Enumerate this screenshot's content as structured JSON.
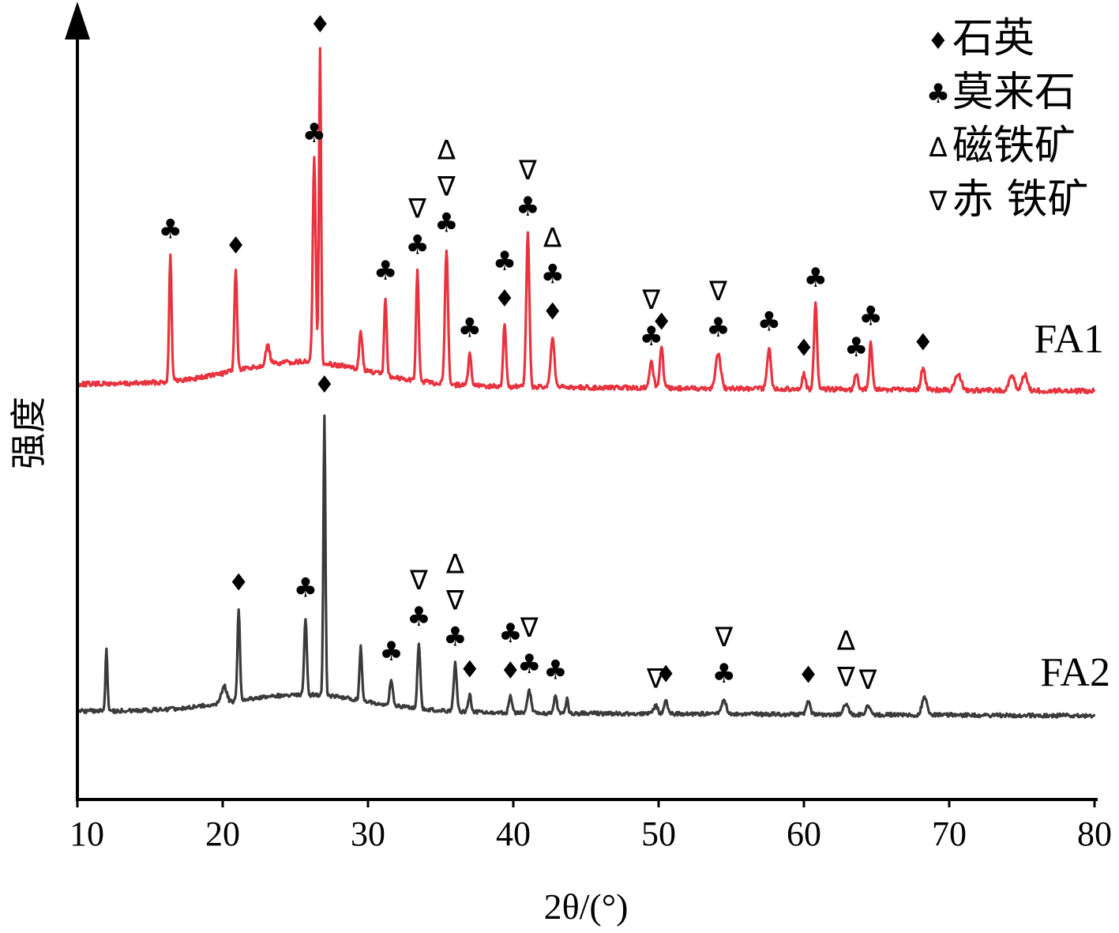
{
  "chart_data": {
    "type": "line",
    "title": "",
    "xlabel": "2θ/(°)",
    "ylabel": "强度",
    "xlim": [
      10,
      80
    ],
    "xticks": [
      "10",
      "20",
      "30",
      "40",
      "50",
      "60",
      "70",
      "80"
    ],
    "grid": false,
    "legend_position": "top-right",
    "legend": [
      {
        "symbol": "♦",
        "label": "石英"
      },
      {
        "symbol": "♣",
        "label": "莫来石"
      },
      {
        "symbol": "∆",
        "label": "磁铁矿"
      },
      {
        "symbol": "∇",
        "label": "赤 铁矿"
      }
    ],
    "series": [
      {
        "name": "FA1",
        "color": "#e8333f",
        "peaks": [
          {
            "x": 16.4,
            "h": 0.4,
            "w": 0.12,
            "labels": [
              "♣"
            ]
          },
          {
            "x": 20.9,
            "h": 0.32,
            "w": 0.13,
            "labels": [
              "♦"
            ]
          },
          {
            "x": 23.1,
            "h": 0.06,
            "w": 0.2,
            "labels": []
          },
          {
            "x": 26.3,
            "h": 0.65,
            "w": 0.14,
            "labels": [
              "♣"
            ]
          },
          {
            "x": 26.7,
            "h": 1.0,
            "w": 0.1,
            "labels": [
              "♦"
            ]
          },
          {
            "x": 29.5,
            "h": 0.12,
            "w": 0.15,
            "labels": []
          },
          {
            "x": 31.2,
            "h": 0.25,
            "w": 0.12,
            "labels": [
              "♣"
            ]
          },
          {
            "x": 33.4,
            "h": 0.35,
            "w": 0.13,
            "labels": [
              "♣",
              "∇"
            ]
          },
          {
            "x": 35.4,
            "h": 0.43,
            "w": 0.15,
            "labels": [
              "♣",
              "∇",
              "∆"
            ]
          },
          {
            "x": 37.0,
            "h": 0.1,
            "w": 0.15,
            "labels": [
              "♣"
            ]
          },
          {
            "x": 39.4,
            "h": 0.2,
            "w": 0.14,
            "labels": [
              "♦",
              "♣"
            ]
          },
          {
            "x": 41.0,
            "h": 0.49,
            "w": 0.15,
            "labels": [
              "♣",
              "∇"
            ]
          },
          {
            "x": 42.7,
            "h": 0.16,
            "w": 0.18,
            "labels": [
              "♦",
              "♣",
              "∆"
            ]
          },
          {
            "x": 49.5,
            "h": 0.08,
            "w": 0.2,
            "labels": [
              "♣",
              "∇"
            ]
          },
          {
            "x": 50.2,
            "h": 0.13,
            "w": 0.16,
            "labels": [
              "♦"
            ]
          },
          {
            "x": 54.1,
            "h": 0.11,
            "w": 0.25,
            "labels": [
              "♣",
              "∇"
            ]
          },
          {
            "x": 57.6,
            "h": 0.13,
            "w": 0.18,
            "labels": [
              "♣"
            ]
          },
          {
            "x": 60.0,
            "h": 0.05,
            "w": 0.15,
            "labels": [
              "♦"
            ]
          },
          {
            "x": 60.8,
            "h": 0.27,
            "w": 0.15,
            "labels": [
              "♣"
            ]
          },
          {
            "x": 63.6,
            "h": 0.05,
            "w": 0.15,
            "labels": [
              "♣"
            ]
          },
          {
            "x": 64.6,
            "h": 0.15,
            "w": 0.15,
            "labels": [
              "♣"
            ]
          },
          {
            "x": 68.2,
            "h": 0.07,
            "w": 0.2,
            "labels": [
              "♦"
            ]
          },
          {
            "x": 70.6,
            "h": 0.05,
            "w": 0.3,
            "labels": []
          },
          {
            "x": 74.3,
            "h": 0.05,
            "w": 0.25,
            "labels": []
          },
          {
            "x": 75.2,
            "h": 0.05,
            "w": 0.25,
            "labels": []
          }
        ]
      },
      {
        "name": "FA2",
        "color": "#3a3a3a",
        "peaks": [
          {
            "x": 12.0,
            "h": 0.22,
            "w": 0.1,
            "labels": []
          },
          {
            "x": 20.1,
            "h": 0.06,
            "w": 0.25,
            "labels": []
          },
          {
            "x": 21.1,
            "h": 0.32,
            "w": 0.12,
            "labels": [
              "♦"
            ]
          },
          {
            "x": 25.7,
            "h": 0.27,
            "w": 0.13,
            "labels": [
              "♣"
            ]
          },
          {
            "x": 27.0,
            "h": 1.0,
            "w": 0.1,
            "labels": [
              "♦"
            ]
          },
          {
            "x": 29.5,
            "h": 0.19,
            "w": 0.12,
            "labels": []
          },
          {
            "x": 31.6,
            "h": 0.09,
            "w": 0.15,
            "labels": [
              "♣"
            ]
          },
          {
            "x": 33.5,
            "h": 0.23,
            "w": 0.14,
            "labels": [
              "♣",
              "∇"
            ]
          },
          {
            "x": 36.0,
            "h": 0.17,
            "w": 0.15,
            "labels": [
              "♣",
              "∇",
              "∆"
            ]
          },
          {
            "x": 37.0,
            "h": 0.06,
            "w": 0.15,
            "labels": [
              "♦"
            ]
          },
          {
            "x": 39.8,
            "h": 0.06,
            "w": 0.15,
            "labels": [
              "♦",
              "♣"
            ]
          },
          {
            "x": 41.1,
            "h": 0.08,
            "w": 0.18,
            "labels": [
              "♣",
              "∇"
            ]
          },
          {
            "x": 42.9,
            "h": 0.06,
            "w": 0.15,
            "labels": [
              "♣"
            ]
          },
          {
            "x": 43.7,
            "h": 0.05,
            "w": 0.12,
            "labels": []
          },
          {
            "x": 49.8,
            "h": 0.03,
            "w": 0.2,
            "labels": [
              "∇"
            ]
          },
          {
            "x": 50.5,
            "h": 0.05,
            "w": 0.18,
            "labels": [
              "♦"
            ]
          },
          {
            "x": 54.5,
            "h": 0.05,
            "w": 0.22,
            "labels": [
              "♣",
              "∇"
            ]
          },
          {
            "x": 60.3,
            "h": 0.05,
            "w": 0.18,
            "labels": [
              "♦"
            ]
          },
          {
            "x": 62.9,
            "h": 0.04,
            "w": 0.22,
            "labels": [
              "∇",
              "∆"
            ]
          },
          {
            "x": 64.4,
            "h": 0.03,
            "w": 0.2,
            "labels": [
              "∇"
            ]
          },
          {
            "x": 68.3,
            "h": 0.06,
            "w": 0.25,
            "labels": []
          }
        ]
      }
    ]
  }
}
